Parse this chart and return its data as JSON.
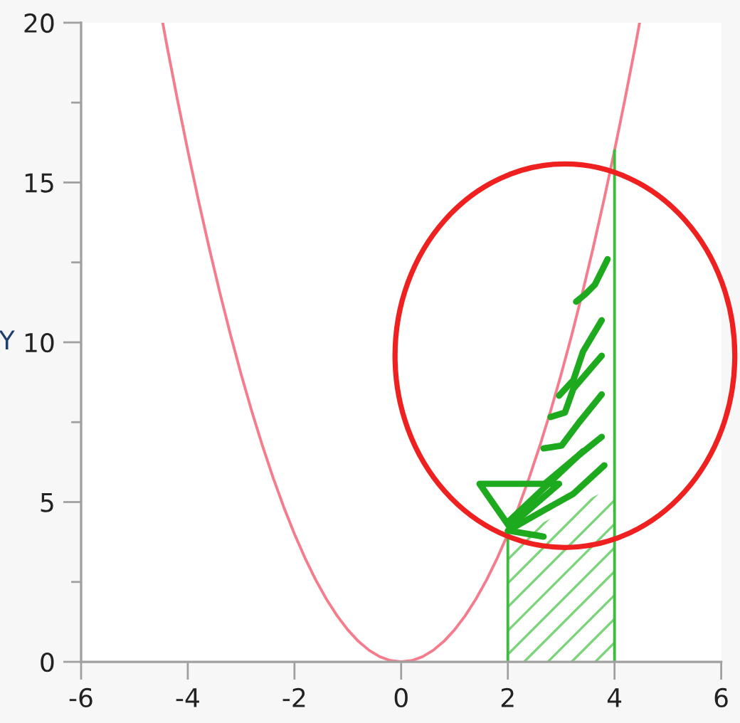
{
  "chart_data": {
    "type": "line",
    "ylabel": "Y",
    "xlim": [
      -6,
      6
    ],
    "ylim": [
      0,
      20
    ],
    "xticks": [
      -6,
      -4,
      -2,
      0,
      2,
      4,
      6
    ],
    "yticks": [
      0,
      {
        "value": 2.5,
        "label": null
      },
      5,
      {
        "value": 7.5,
        "label": null
      },
      10,
      {
        "value": 12.5,
        "label": null
      },
      15,
      {
        "value": 17.5,
        "label": null
      },
      20
    ],
    "series": [
      {
        "color": "#f47c8c",
        "x": [
          -4.47,
          -4.4,
          -4.2,
          -4.0,
          -3.8,
          -3.6,
          -3.4,
          -3.2,
          -3.0,
          -2.8,
          -2.6,
          -2.4,
          -2.2,
          -2.0,
          -1.8,
          -1.6,
          -1.4,
          -1.2,
          -1.0,
          -0.8,
          -0.6,
          -0.4,
          -0.2,
          0,
          0.2,
          0.4,
          0.6,
          0.8,
          1.0,
          1.2,
          1.4,
          1.6,
          1.8,
          2.0,
          2.2,
          2.4,
          2.6,
          2.8,
          3.0,
          3.2,
          3.4,
          3.6,
          3.8,
          4.0,
          4.2,
          4.4,
          4.47
        ],
        "values": [
          20,
          19.36,
          17.64,
          16,
          14.44,
          12.96,
          11.56,
          10.24,
          9,
          7.84,
          6.76,
          5.76,
          4.84,
          4,
          3.24,
          2.56,
          1.96,
          1.44,
          1,
          0.64,
          0.36,
          0.16,
          0.04,
          0,
          0.04,
          0.16,
          0.36,
          0.64,
          1,
          1.44,
          1.96,
          2.56,
          3.24,
          4,
          4.84,
          5.76,
          6.76,
          7.84,
          9,
          10.24,
          11.56,
          12.96,
          14.44,
          16,
          17.64,
          19.36,
          20
        ]
      },
      {
        "type": "area",
        "color": "#7ad47a",
        "x": [
          2,
          4
        ],
        "values": [
          3.8,
          5.5
        ]
      },
      {
        "type": "line",
        "color": "#3cbc3c",
        "x": [
          2,
          2
        ],
        "values": [
          0,
          4
        ]
      },
      {
        "type": "line",
        "color": "#3cbc3c",
        "x": [
          4,
          4
        ],
        "values": [
          0,
          16
        ]
      }
    ]
  }
}
